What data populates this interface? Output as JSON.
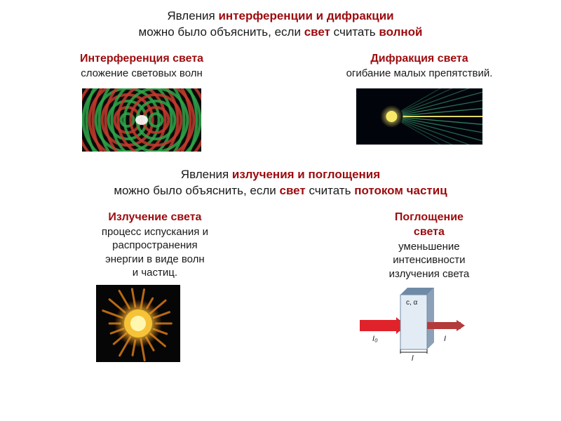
{
  "colors": {
    "red": "#9c0b0e",
    "black": "#1a1a1a",
    "interference_bg": "#0a0a0a",
    "ring_red": "#c33b2e",
    "ring_green": "#2fa64a",
    "diffraction_bg": "#02040c",
    "diffraction_glow": "#f7e86a",
    "diffraction_ray": "#3a9b6b",
    "sun_bg": "#060606",
    "sun_core": "#fff7b0",
    "sun_mid": "#f6c338",
    "sun_edge": "#d97a17",
    "glass_body": "#e3ecf4",
    "glass_edge": "#6f8aa6",
    "laser": "#e0222a",
    "laser_dim": "#b43b3b"
  },
  "title": {
    "t1a": "Явления ",
    "t1b": "интерференции и дифракции",
    "t2a": "можно было объяснить, если ",
    "t2b": "свет",
    "t2c": " считать ",
    "t2d": "волной"
  },
  "interference": {
    "head": "Интерференция света",
    "sub": "сложение световых волн"
  },
  "diffraction": {
    "head": "Дифракция света",
    "sub": "огибание малых препятствий."
  },
  "mid": {
    "m1a": "Явления ",
    "m1b": "излучения и поглощения",
    "m2a": "можно было объяснить, если ",
    "m2b": "свет",
    "m2c": " считать ",
    "m2d": "потоком частиц"
  },
  "emission": {
    "head": "Излучение света",
    "l1": "процесс испускания и",
    "l2": "распространения",
    "l3": "энергии в виде волн",
    "l4": "и частиц."
  },
  "absorption": {
    "head": "Поглощение",
    "head2": "света",
    "l1": "уменьшение",
    "l2": "интенсивности",
    "l3": "излучения света"
  },
  "interference_img": {
    "w": 170,
    "h": 90
  },
  "diffraction_img": {
    "w": 180,
    "h": 80
  },
  "sun_img": {
    "w": 120,
    "h": 110
  },
  "glass_img": {
    "w": 150,
    "h": 110
  }
}
